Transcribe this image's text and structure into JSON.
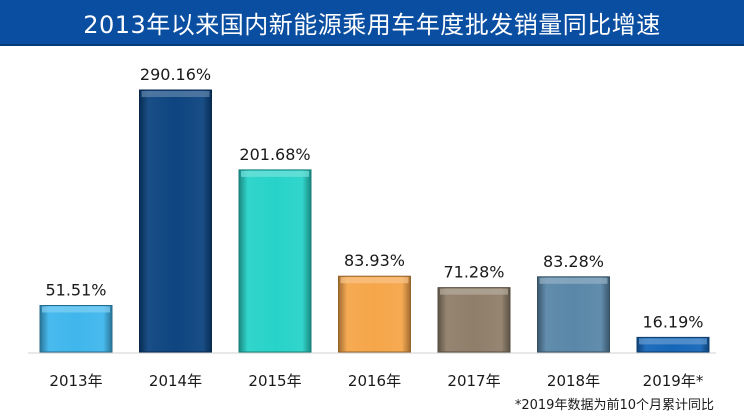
{
  "header": {
    "title": "2013年以来国内新能源乘用车年度批发销量同比增速"
  },
  "chart_data": {
    "type": "bar",
    "title": "2013年以来国内新能源乘用车年度批发销量同比增速",
    "categories": [
      "2013年",
      "2014年",
      "2015年",
      "2016年",
      "2017年",
      "2018年",
      "2019年*"
    ],
    "values": [
      51.51,
      290.16,
      201.68,
      83.93,
      71.28,
      83.28,
      16.19
    ],
    "value_labels": [
      "51.51%",
      "290.16%",
      "201.68%",
      "83.93%",
      "71.28%",
      "83.28%",
      "16.19%"
    ],
    "bar_colors": [
      "#3fb6ec",
      "#0d4580",
      "#27d3c8",
      "#f6a64a",
      "#8f7f6a",
      "#5a87a8",
      "#1566b8"
    ],
    "ylim": [
      0,
      290.16
    ],
    "xlabel": "",
    "ylabel": "",
    "grid": false,
    "legend": "none"
  },
  "footnote": "*2019年数据为前10个月累计同比"
}
